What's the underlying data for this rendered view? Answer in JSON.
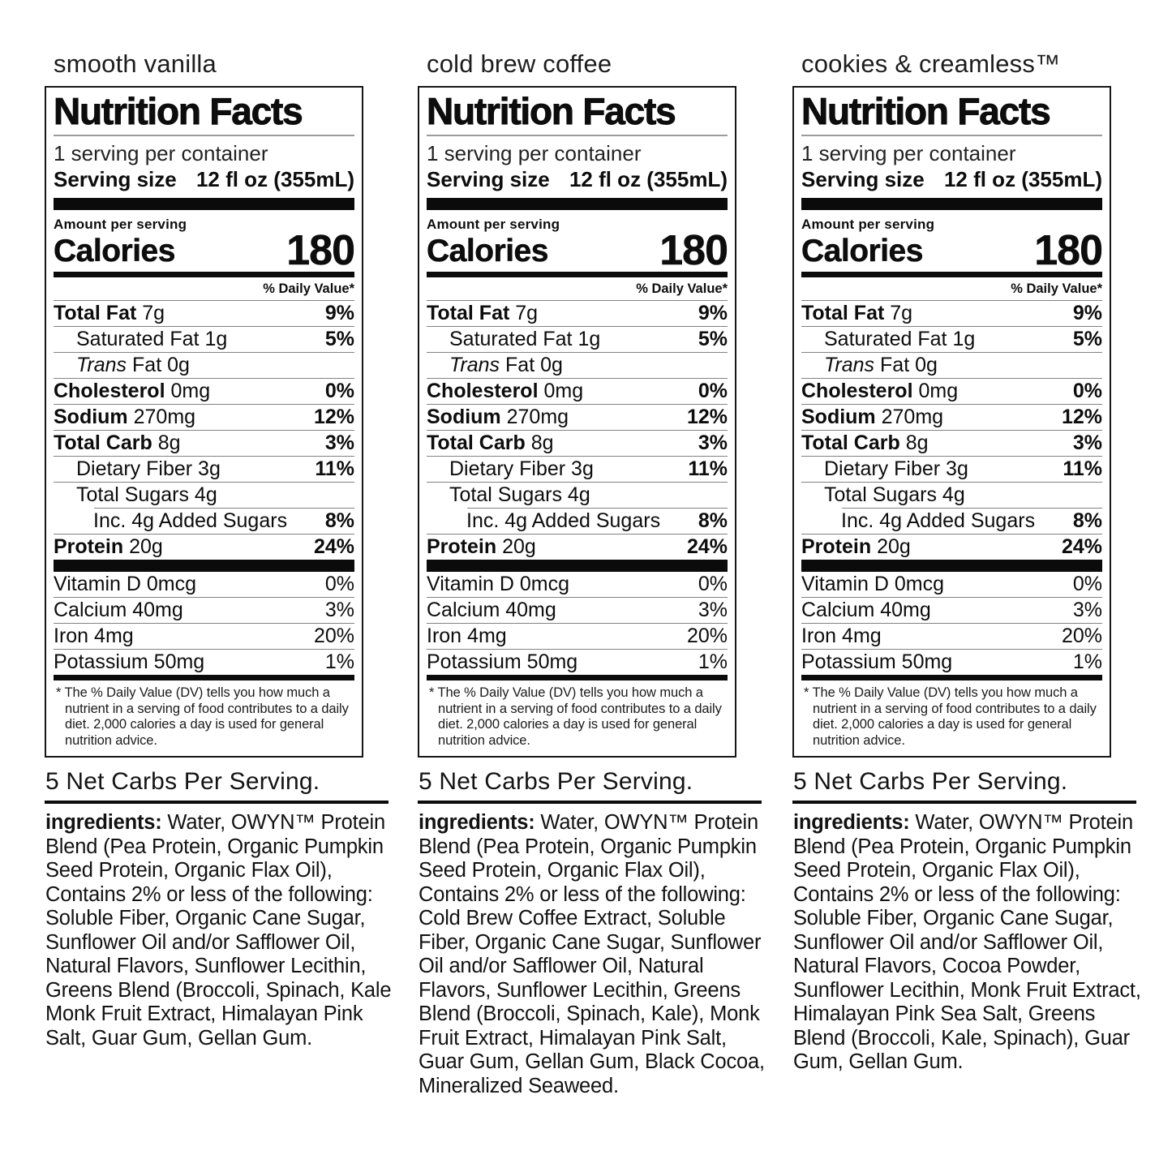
{
  "panels": [
    {
      "flavor": "smooth vanilla",
      "net_carbs": "5 Net Carbs Per Serving.",
      "ingredients_label": "ingredients:",
      "ingredients": "Water, OWYN™ Protein Blend (Pea Protein, Organic Pumpkin Seed Protein, Organic Flax Oil), Contains 2% or less of the following: Soluble Fiber, Organic Cane Sugar, Sunflower Oil and/or Safflower Oil, Natural Flavors, Sunflower Lecithin, Greens Blend (Broccoli, Spinach, Kale Monk Fruit Extract, Himalayan Pink Salt, Guar Gum, Gellan Gum.",
      "facts": {
        "title": "Nutrition Facts",
        "servings": "1 serving per container",
        "serving_size_label": "Serving size",
        "serving_size_value": "12 fl oz (355mL)",
        "amount_per_serving": "Amount per serving",
        "calories_label": "Calories",
        "calories": "180",
        "daily_value_header": "% Daily Value*",
        "rows": [
          {
            "label": "Total Fat",
            "amount": "7g",
            "dv": "9%",
            "bold": true,
            "indent": 0
          },
          {
            "label": "Saturated Fat",
            "amount": "1g",
            "dv": "5%",
            "indent": 1
          },
          {
            "label_italic": "Trans",
            "label": "Fat",
            "amount": "0g",
            "dv": "",
            "indent": 1
          },
          {
            "label": "Cholesterol",
            "amount": "0mg",
            "dv": "0%",
            "bold": true,
            "indent": 0
          },
          {
            "label": "Sodium",
            "amount": "270mg",
            "dv": "12%",
            "bold": true,
            "indent": 0
          },
          {
            "label": "Total Carb",
            "amount": "8g",
            "dv": "3%",
            "bold": true,
            "indent": 0
          },
          {
            "label": "Dietary Fiber",
            "amount": "3g",
            "dv": "11%",
            "indent": 1
          },
          {
            "label": "Total Sugars",
            "amount": "4g",
            "dv": "",
            "indent": 1,
            "sep": "none"
          },
          {
            "label": "Inc. 4g Added Sugars",
            "amount": "",
            "dv": "8%",
            "indent": 2,
            "pre_rule": true
          },
          {
            "label": "Protein",
            "amount": "20g",
            "dv": "24%",
            "bold": true,
            "indent": 0,
            "sep": "none"
          }
        ],
        "micros": [
          {
            "label": "Vitamin D",
            "amount": "0mcg",
            "dv": "0%"
          },
          {
            "label": "Calcium",
            "amount": "40mg",
            "dv": "3%"
          },
          {
            "label": "Iron",
            "amount": "4mg",
            "dv": "20%"
          },
          {
            "label": "Potassium",
            "amount": "50mg",
            "dv": "1%",
            "sep": "none"
          }
        ],
        "footnote": "* The % Daily Value (DV) tells you how much a nutrient in a serving of food contributes to a daily diet. 2,000 calories a day is used for general nutrition advice."
      }
    },
    {
      "flavor": "cold brew coffee",
      "net_carbs": "5 Net Carbs Per Serving.",
      "ingredients_label": "ingredients:",
      "ingredients": "Water, OWYN™ Protein Blend (Pea Protein, Organic Pumpkin Seed Protein, Organic Flax Oil), Contains 2% or less of the following: Cold Brew Coffee Extract, Soluble Fiber, Organic Cane Sugar, Sunflower Oil and/or Safflower Oil, Natural Flavors, Sunflower Lecithin, Greens Blend (Broccoli, Spinach, Kale), Monk Fruit Extract, Himalayan Pink Salt, Guar Gum, Gellan Gum, Black Cocoa, Mineralized Seaweed.",
      "facts": {
        "title": "Nutrition Facts",
        "servings": "1 serving per container",
        "serving_size_label": "Serving size",
        "serving_size_value": "12 fl oz (355mL)",
        "amount_per_serving": "Amount per serving",
        "calories_label": "Calories",
        "calories": "180",
        "daily_value_header": "% Daily Value*",
        "rows": [
          {
            "label": "Total Fat",
            "amount": "7g",
            "dv": "9%",
            "bold": true,
            "indent": 0
          },
          {
            "label": "Saturated Fat",
            "amount": "1g",
            "dv": "5%",
            "indent": 1
          },
          {
            "label_italic": "Trans",
            "label": "Fat",
            "amount": "0g",
            "dv": "",
            "indent": 1
          },
          {
            "label": "Cholesterol",
            "amount": "0mg",
            "dv": "0%",
            "bold": true,
            "indent": 0
          },
          {
            "label": "Sodium",
            "amount": "270mg",
            "dv": "12%",
            "bold": true,
            "indent": 0
          },
          {
            "label": "Total Carb",
            "amount": "8g",
            "dv": "3%",
            "bold": true,
            "indent": 0
          },
          {
            "label": "Dietary Fiber",
            "amount": "3g",
            "dv": "11%",
            "indent": 1
          },
          {
            "label": "Total Sugars",
            "amount": "4g",
            "dv": "",
            "indent": 1,
            "sep": "none"
          },
          {
            "label": "Inc. 4g Added Sugars",
            "amount": "",
            "dv": "8%",
            "indent": 2,
            "pre_rule": true
          },
          {
            "label": "Protein",
            "amount": "20g",
            "dv": "24%",
            "bold": true,
            "indent": 0,
            "sep": "none"
          }
        ],
        "micros": [
          {
            "label": "Vitamin D",
            "amount": "0mcg",
            "dv": "0%"
          },
          {
            "label": "Calcium",
            "amount": "40mg",
            "dv": "3%"
          },
          {
            "label": "Iron",
            "amount": "4mg",
            "dv": "20%"
          },
          {
            "label": "Potassium",
            "amount": "50mg",
            "dv": "1%",
            "sep": "none"
          }
        ],
        "footnote": "* The % Daily Value (DV) tells you how much a nutrient in a serving of food contributes to a daily diet. 2,000 calories a day is used for general nutrition advice."
      }
    },
    {
      "flavor": "cookies & creamless™",
      "net_carbs": "5 Net Carbs Per Serving.",
      "ingredients_label": "ingredients:",
      "ingredients": "Water, OWYN™ Protein Blend (Pea Protein, Organic Pumpkin Seed Protein, Organic Flax Oil), Contains 2% or less of the following: Soluble Fiber, Organic Cane Sugar, Sunflower Oil and/or Safflower Oil, Natural Flavors, Cocoa Powder, Sunflower Lecithin, Monk Fruit Extract, Himalayan Pink Sea Salt, Greens Blend (Broccoli, Kale, Spinach), Guar Gum, Gellan Gum.",
      "facts": {
        "title": "Nutrition Facts",
        "servings": "1 serving per container",
        "serving_size_label": "Serving size",
        "serving_size_value": "12 fl oz (355mL)",
        "amount_per_serving": "Amount per serving",
        "calories_label": "Calories",
        "calories": "180",
        "daily_value_header": "% Daily Value*",
        "rows": [
          {
            "label": "Total Fat",
            "amount": "7g",
            "dv": "9%",
            "bold": true,
            "indent": 0
          },
          {
            "label": "Saturated Fat",
            "amount": "1g",
            "dv": "5%",
            "indent": 1
          },
          {
            "label_italic": "Trans",
            "label": "Fat",
            "amount": "0g",
            "dv": "",
            "indent": 1
          },
          {
            "label": "Cholesterol",
            "amount": "0mg",
            "dv": "0%",
            "bold": true,
            "indent": 0
          },
          {
            "label": "Sodium",
            "amount": "270mg",
            "dv": "12%",
            "bold": true,
            "indent": 0
          },
          {
            "label": "Total Carb",
            "amount": "8g",
            "dv": "3%",
            "bold": true,
            "indent": 0
          },
          {
            "label": "Dietary Fiber",
            "amount": "3g",
            "dv": "11%",
            "indent": 1
          },
          {
            "label": "Total Sugars",
            "amount": "4g",
            "dv": "",
            "indent": 1,
            "sep": "none"
          },
          {
            "label": "Inc. 4g Added Sugars",
            "amount": "",
            "dv": "8%",
            "indent": 2,
            "pre_rule": true
          },
          {
            "label": "Protein",
            "amount": "20g",
            "dv": "24%",
            "bold": true,
            "indent": 0,
            "sep": "none"
          }
        ],
        "micros": [
          {
            "label": "Vitamin D",
            "amount": "0mcg",
            "dv": "0%"
          },
          {
            "label": "Calcium",
            "amount": "40mg",
            "dv": "3%"
          },
          {
            "label": "Iron",
            "amount": "4mg",
            "dv": "20%"
          },
          {
            "label": "Potassium",
            "amount": "50mg",
            "dv": "1%",
            "sep": "none"
          }
        ],
        "footnote": "* The % Daily Value (DV) tells you how much a nutrient in a serving of food contributes to a daily diet. 2,000 calories a day is used for general nutrition advice."
      }
    }
  ]
}
